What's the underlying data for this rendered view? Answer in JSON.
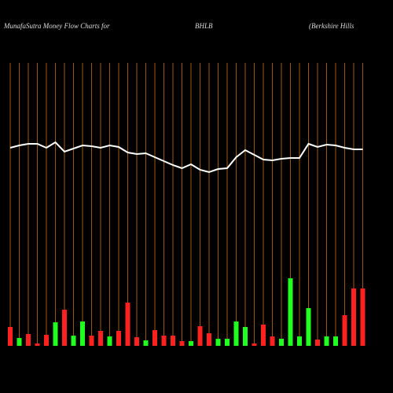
{
  "chart_data": {
    "type": "bar",
    "title": "MunafaSutra  Money Flow  Charts for",
    "subtitle": "BHLB",
    "annotation": "(Berkshire   Hills",
    "ylim": [
      0,
      360
    ],
    "grid": true,
    "grid_color": "#a05a10",
    "bars": {
      "values": [
        24,
        10,
        15,
        3,
        14,
        30,
        46,
        13,
        31,
        13,
        19,
        12,
        19,
        55,
        11,
        7,
        20,
        13,
        13,
        6,
        6,
        25,
        16,
        9,
        9,
        31,
        24,
        3,
        27,
        12,
        9,
        86,
        12,
        48,
        8,
        12,
        12,
        39,
        73,
        73
      ],
      "colors": [
        "#ff2020",
        "#20ff20",
        "#ff2020",
        "#ff2020",
        "#ff2020",
        "#20ff20",
        "#ff2020",
        "#20ff20",
        "#20ff20",
        "#ff2020",
        "#ff2020",
        "#20ff20",
        "#ff2020",
        "#ff2020",
        "#ff2020",
        "#20ff20",
        "#ff2020",
        "#ff2020",
        "#ff2020",
        "#ff2020",
        "#20ff20",
        "#ff2020",
        "#ff2020",
        "#20ff20",
        "#20ff20",
        "#20ff20",
        "#20ff20",
        "#ff2020",
        "#ff2020",
        "#ff2020",
        "#20ff20",
        "#20ff20",
        "#20ff20",
        "#20ff20",
        "#ff2020",
        "#20ff20",
        "#20ff20",
        "#ff2020",
        "#ff2020",
        "#ff2020"
      ]
    },
    "line": {
      "color": "#ffffff",
      "values": [
        252,
        255,
        257,
        257,
        252,
        259,
        247,
        251,
        255,
        254,
        252,
        255,
        253,
        246,
        244,
        245,
        240,
        235,
        230,
        226,
        231,
        224,
        221,
        225,
        226,
        240,
        249,
        243,
        237,
        236,
        238,
        239,
        239,
        257,
        253,
        256,
        255,
        252,
        250,
        250
      ]
    }
  }
}
